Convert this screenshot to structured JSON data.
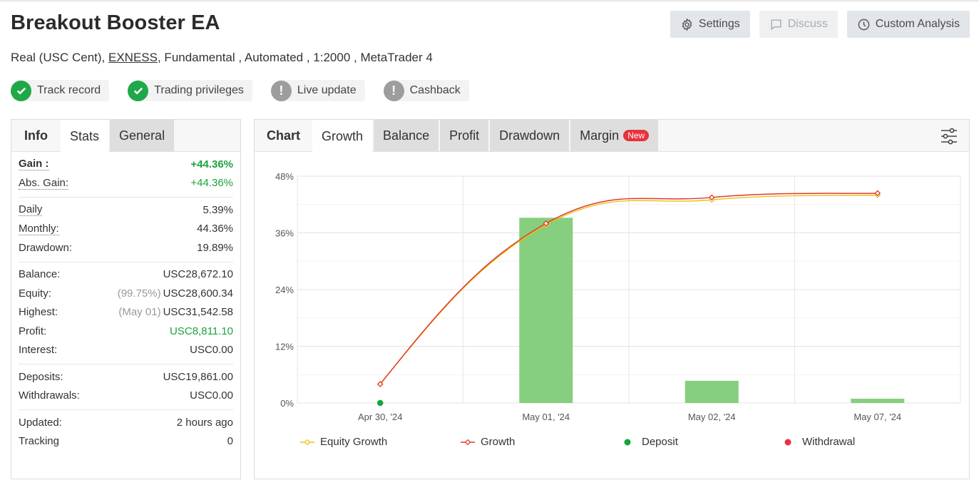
{
  "header": {
    "title": "Breakout Booster EA",
    "buttons": {
      "settings": "Settings",
      "discuss": "Discuss",
      "custom_analysis": "Custom Analysis"
    },
    "subline": {
      "account": "Real (USC Cent),",
      "broker": "EXNESS",
      "rest": ", Fundamental , Automated , 1:2000 , MetaTrader 4"
    },
    "badges": [
      {
        "label": "Track record",
        "status": "ok"
      },
      {
        "label": "Trading privileges",
        "status": "ok"
      },
      {
        "label": "Live update",
        "status": "warn"
      },
      {
        "label": "Cashback",
        "status": "warn"
      }
    ]
  },
  "left_panel": {
    "tabs": {
      "info": "Info",
      "stats": "Stats",
      "general": "General"
    },
    "gain": {
      "label": "Gain :",
      "value": "+44.36%"
    },
    "abs_gain": {
      "label": "Abs. Gain:",
      "value": "+44.36%"
    },
    "daily": {
      "label": "Daily",
      "value": "5.39%"
    },
    "monthly": {
      "label": "Monthly:",
      "value": "44.36%"
    },
    "drawdown": {
      "label": "Drawdown:",
      "value": "19.89%"
    },
    "balance": {
      "label": "Balance:",
      "value": "USC28,672.10"
    },
    "equity": {
      "label": "Equity:",
      "pre": "(99.75%)",
      "value": "USC28,600.34"
    },
    "highest": {
      "label": "Highest:",
      "pre": "(May 01)",
      "value": "USC31,542.58"
    },
    "profit": {
      "label": "Profit:",
      "value": "USC8,811.10"
    },
    "interest": {
      "label": "Interest:",
      "value": "USC0.00"
    },
    "deposits": {
      "label": "Deposits:",
      "value": "USC19,861.00"
    },
    "withdrawals": {
      "label": "Withdrawals:",
      "value": "USC0.00"
    },
    "updated": {
      "label": "Updated:",
      "value": "2 hours ago"
    },
    "tracking": {
      "label": "Tracking",
      "value": "0"
    }
  },
  "chart_panel": {
    "tabs": {
      "chart": "Chart",
      "growth": "Growth",
      "balance": "Balance",
      "profit": "Profit",
      "drawdown": "Drawdown",
      "margin": "Margin",
      "new_badge": "New"
    }
  },
  "chart_data": {
    "type": "line",
    "categories": [
      "Apr 30, '24",
      "May 01, '24",
      "May 02, '24",
      "May 07, '24"
    ],
    "ylim": [
      0,
      48
    ],
    "yticks": [
      "0%",
      "12%",
      "24%",
      "36%",
      "48%"
    ],
    "bars": {
      "values": [
        0,
        39.2,
        4.7,
        0.9
      ],
      "color": "#86cf7e"
    },
    "series": [
      {
        "name": "Equity Growth",
        "values": [
          4,
          37.7,
          43.0,
          44.0
        ],
        "color": "#e8c21c"
      },
      {
        "name": "Growth",
        "values": [
          4,
          38.0,
          43.5,
          44.4
        ],
        "color": "#e03b26"
      }
    ],
    "legend": [
      {
        "name": "Equity Growth",
        "color": "#e8c21c",
        "marker": "line"
      },
      {
        "name": "Growth",
        "color": "#e03b26",
        "marker": "line"
      },
      {
        "name": "Deposit",
        "color": "#17a33c",
        "marker": "dot"
      },
      {
        "name": "Withdrawal",
        "color": "#e8323c",
        "marker": "dot"
      }
    ],
    "deposit_points": [
      {
        "category": "Apr 30, '24",
        "value": 0
      }
    ],
    "grid": true,
    "legend_position": "bottom"
  }
}
